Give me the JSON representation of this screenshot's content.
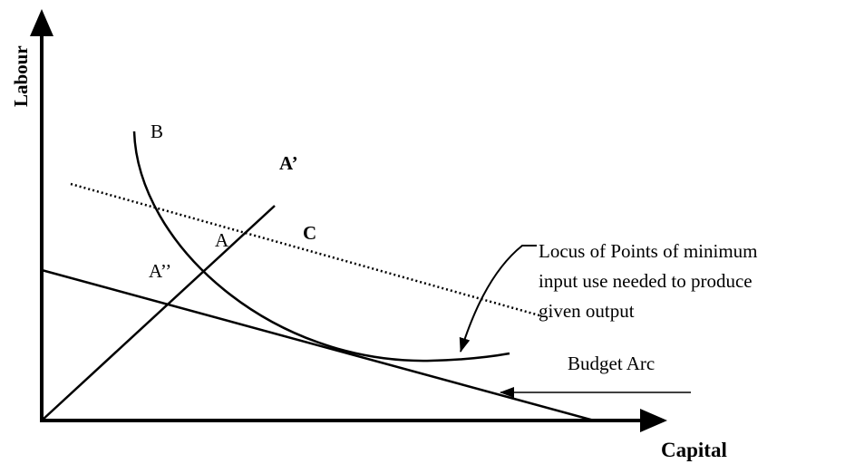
{
  "axes": {
    "y_label": "Labour",
    "x_label": "Capital"
  },
  "points": {
    "b": "B",
    "a_prime": "A’",
    "c": "C",
    "a": "A",
    "a_double_prime": "A’’"
  },
  "annotations": {
    "locus": [
      "Locus of Points of minimum",
      "input use needed to produce",
      "given output"
    ],
    "budget": "Budget Arc"
  }
}
